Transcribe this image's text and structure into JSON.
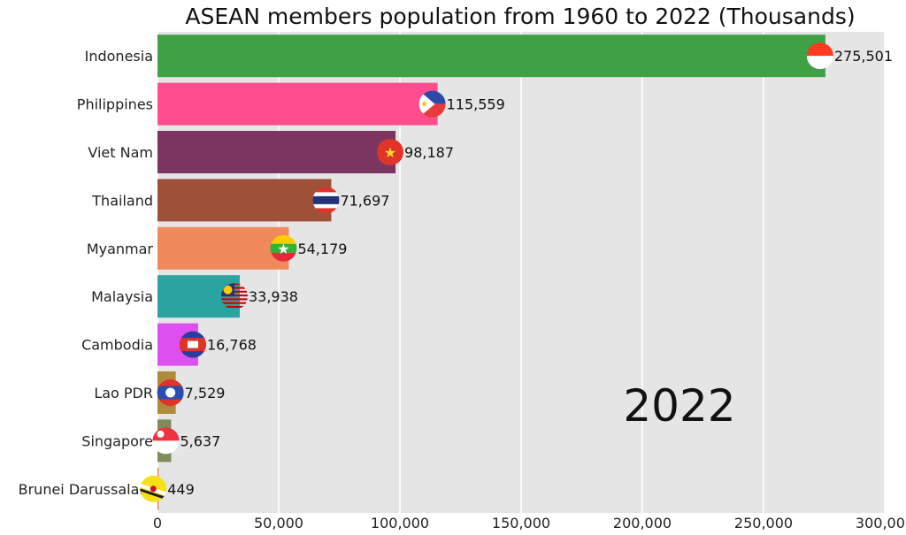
{
  "chart_data": {
    "type": "bar",
    "orientation": "horizontal",
    "title": "ASEAN members population from 1960 to 2022 (Thousands)",
    "year": "2022",
    "categories": [
      "Indonesia",
      "Philippines",
      "Viet Nam",
      "Thailand",
      "Myanmar",
      "Malaysia",
      "Cambodia",
      "Lao PDR",
      "Singapore",
      "Brunei Darussalam"
    ],
    "values": [
      275501,
      115559,
      98187,
      71697,
      54179,
      33938,
      16768,
      7529,
      5637,
      449
    ],
    "value_labels": [
      "275,501",
      "115,559",
      "98,187",
      "71,697",
      "54,179",
      "33,938",
      "16,768",
      "7,529",
      "5,637",
      "449"
    ],
    "colors": [
      "#3fa045",
      "#ff4d8f",
      "#7b3560",
      "#9e5038",
      "#f08a5d",
      "#2aa3a1",
      "#dd4ff0",
      "#b08a3c",
      "#7d8c5a",
      "#e07a36"
    ],
    "flag_icons": [
      "indonesia-flag-icon",
      "philippines-flag-icon",
      "vietnam-flag-icon",
      "thailand-flag-icon",
      "myanmar-flag-icon",
      "malaysia-flag-icon",
      "cambodia-flag-icon",
      "laos-flag-icon",
      "singapore-flag-icon",
      "brunei-flag-icon"
    ],
    "xlim": [
      0,
      300000
    ],
    "xticks": [
      0,
      50000,
      100000,
      150000,
      200000,
      250000,
      300000
    ],
    "xtick_labels": [
      "0",
      "50,000",
      "100,000",
      "150,000",
      "200,000",
      "250,000",
      "300,000"
    ],
    "grid": true,
    "background": "#e5e5e5"
  }
}
